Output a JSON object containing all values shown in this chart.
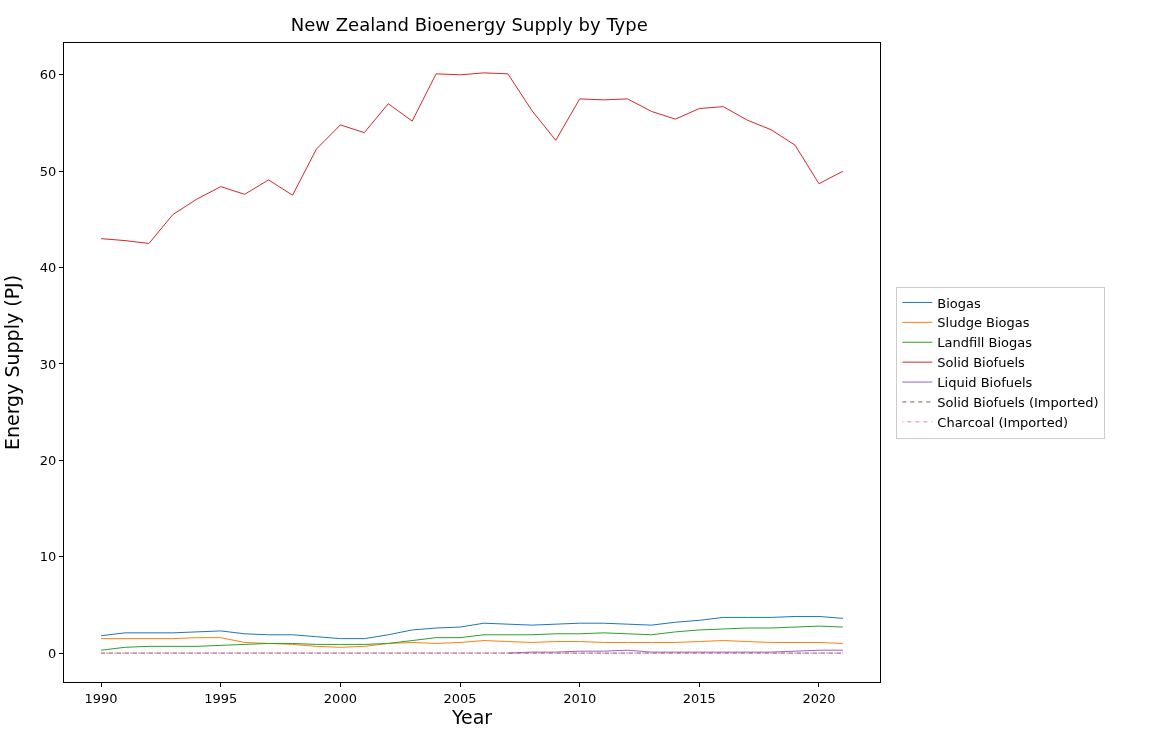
{
  "chart_data": {
    "type": "line",
    "title": "New Zealand Bioenergy Supply by Type",
    "xlabel": "Year",
    "ylabel": "Energy Supply (PJ)",
    "x": [
      1990,
      1991,
      1992,
      1993,
      1994,
      1995,
      1996,
      1997,
      1998,
      1999,
      2000,
      2001,
      2002,
      2003,
      2004,
      2005,
      2006,
      2007,
      2008,
      2009,
      2010,
      2011,
      2012,
      2013,
      2014,
      2015,
      2016,
      2017,
      2018,
      2019,
      2020,
      2021
    ],
    "series": [
      {
        "name": "Biogas",
        "color": "#1f77b4",
        "values": [
          1.8,
          2.1,
          2.1,
          2.1,
          2.2,
          2.3,
          2.0,
          1.9,
          1.9,
          1.7,
          1.5,
          1.5,
          1.9,
          2.4,
          2.6,
          2.7,
          3.1,
          3.0,
          2.9,
          3.0,
          3.1,
          3.1,
          3.0,
          2.9,
          3.2,
          3.4,
          3.7,
          3.7,
          3.7,
          3.8,
          3.8,
          3.6
        ]
      },
      {
        "name": "Sludge Biogas",
        "color": "#ff7f0e",
        "values": [
          1.5,
          1.5,
          1.5,
          1.5,
          1.6,
          1.6,
          1.1,
          1.0,
          0.9,
          0.7,
          0.6,
          0.7,
          1.0,
          1.1,
          1.0,
          1.1,
          1.3,
          1.2,
          1.1,
          1.2,
          1.2,
          1.1,
          1.1,
          1.1,
          1.1,
          1.2,
          1.3,
          1.2,
          1.1,
          1.1,
          1.1,
          1.0
        ]
      },
      {
        "name": "Landfill Biogas",
        "color": "#2ca02c",
        "values": [
          0.3,
          0.6,
          0.7,
          0.7,
          0.7,
          0.8,
          0.9,
          1.0,
          1.0,
          0.9,
          0.9,
          0.9,
          1.0,
          1.3,
          1.6,
          1.6,
          1.9,
          1.9,
          1.9,
          2.0,
          2.0,
          2.1,
          2.0,
          1.9,
          2.2,
          2.4,
          2.5,
          2.6,
          2.6,
          2.7,
          2.8,
          2.7
        ]
      },
      {
        "name": "Solid Biofuels",
        "color": "#d62728",
        "values": [
          43.0,
          42.8,
          42.5,
          45.5,
          47.1,
          48.4,
          47.6,
          49.1,
          47.5,
          52.3,
          54.8,
          54.0,
          57.0,
          55.2,
          60.1,
          60.0,
          60.2,
          60.1,
          56.3,
          53.2,
          57.5,
          57.4,
          57.5,
          56.2,
          55.4,
          56.5,
          56.7,
          55.3,
          54.3,
          52.7,
          48.7,
          50.0
        ]
      },
      {
        "name": "Liquid Biofuels",
        "color": "#9467bd",
        "values": [
          null,
          null,
          null,
          null,
          null,
          null,
          null,
          null,
          null,
          null,
          null,
          null,
          null,
          null,
          null,
          null,
          null,
          0,
          0.1,
          0.1,
          0.2,
          0.2,
          0.3,
          0.1,
          0.1,
          0.1,
          0.1,
          0.1,
          0.1,
          0.2,
          0.3,
          0.3
        ]
      },
      {
        "name": "Solid Biofuels (Imported)",
        "color": "#8c564b",
        "line_style": "dashed",
        "values": [
          0,
          0,
          0,
          0,
          0,
          0,
          0,
          0,
          0,
          0,
          0,
          0,
          0,
          0,
          0,
          0,
          0,
          0,
          0,
          0,
          0,
          0,
          0,
          0,
          0,
          0,
          0,
          0,
          0,
          0,
          0,
          0
        ]
      },
      {
        "name": "Charcoal (Imported)",
        "color": "#e377c2",
        "line_style": "dashed",
        "values": [
          0,
          0,
          0,
          0,
          0,
          0,
          0,
          0,
          0,
          0,
          0,
          0,
          0,
          0,
          0,
          0,
          0,
          0,
          0,
          0,
          0,
          0,
          0,
          0,
          0,
          0,
          0,
          0,
          0,
          0,
          0,
          0
        ]
      }
    ],
    "xlim": [
      1988.45,
      2022.55
    ],
    "xticks": [
      1990,
      1995,
      2000,
      2005,
      2010,
      2015,
      2020
    ],
    "ylim": [
      -3.0,
      63.3
    ],
    "yticks": [
      0,
      10,
      20,
      30,
      40,
      50,
      60
    ],
    "legend": "right",
    "line_style": "solid",
    "marker": "none"
  }
}
